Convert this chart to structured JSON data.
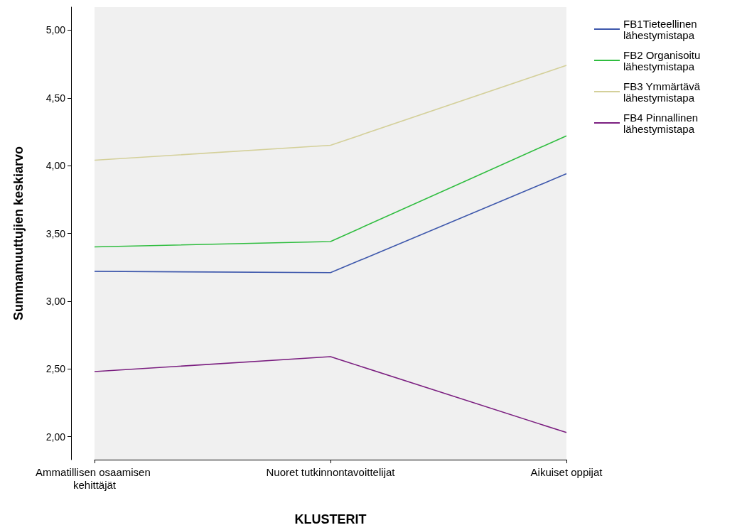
{
  "chart_data": {
    "type": "line",
    "xlabel": "KLUSTERIT",
    "ylabel": "Summamuuttujien keskiarvo",
    "categories": [
      "Ammatillisen osaamisen kehittäjät",
      "Nuoret tutkinnontavoittelijat",
      "Aikuiset oppijat"
    ],
    "series": [
      {
        "name": "FB1Tieteellinen lähestymistapa",
        "color": "#3e58ac",
        "values": [
          3.22,
          3.21,
          3.94
        ]
      },
      {
        "name": "FB2 Organisoitu lähestymistapa",
        "color": "#2fbd3f",
        "values": [
          3.4,
          3.44,
          4.22
        ]
      },
      {
        "name": "FB3 Ymmärtävä lähestymistapa",
        "color": "#d4d09a",
        "values": [
          4.04,
          4.15,
          4.74
        ]
      },
      {
        "name": "FB4 Pinnallinen lähestymistapa",
        "color": "#7b1f80",
        "values": [
          2.48,
          2.59,
          2.03
        ]
      }
    ],
    "ylim": [
      1.83,
      5.17
    ],
    "yticks": [
      {
        "value": 2,
        "label": "2,00"
      },
      {
        "value": 2.5,
        "label": "2,50"
      },
      {
        "value": 3,
        "label": "3,00"
      },
      {
        "value": 3.5,
        "label": "3,50"
      },
      {
        "value": 4,
        "label": "4,00"
      },
      {
        "value": 4.5,
        "label": "4,50"
      },
      {
        "value": 5,
        "label": "5,00"
      }
    ],
    "grid": false,
    "legend": "right",
    "marker": "none",
    "line_style": "solid"
  }
}
